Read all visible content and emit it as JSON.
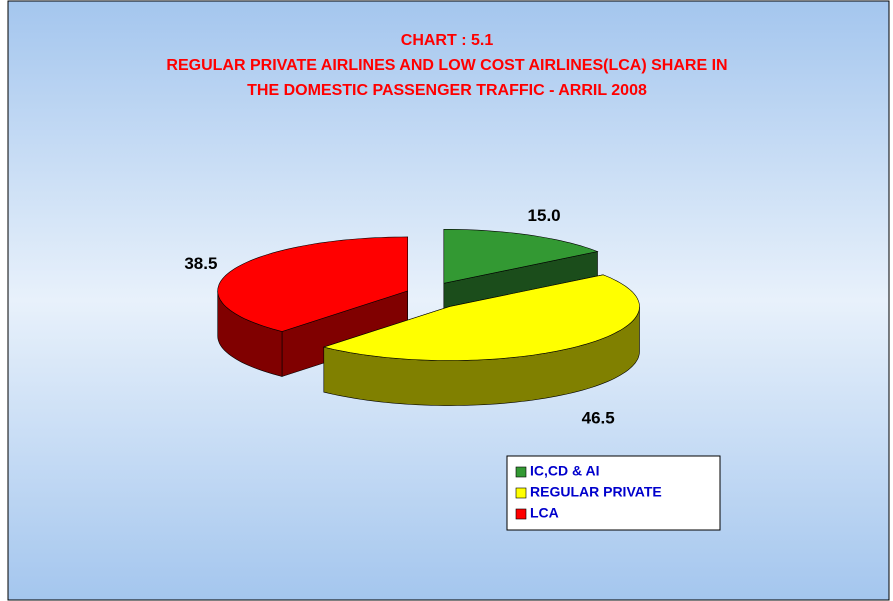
{
  "chart_data": {
    "type": "pie3d",
    "title": [
      "CHART : 5.1",
      "REGULAR PRIVATE AIRLINES AND LOW COST AIRLINES(LCA) SHARE IN",
      "THE DOMESTIC PASSENGER TRAFFIC - ARRIL 2008"
    ],
    "categories": [
      "IC,CD & AI",
      "REGULAR PRIVATE",
      "LCA"
    ],
    "values": [
      15.0,
      46.5,
      38.5
    ],
    "value_labels": [
      "15.0",
      "46.5",
      "38.5"
    ],
    "colors": [
      "#339933",
      "#ffff00",
      "#ff0000"
    ],
    "side_colors": [
      "#1b4d1b",
      "#808000",
      "#800000"
    ],
    "legend": "lower right"
  }
}
